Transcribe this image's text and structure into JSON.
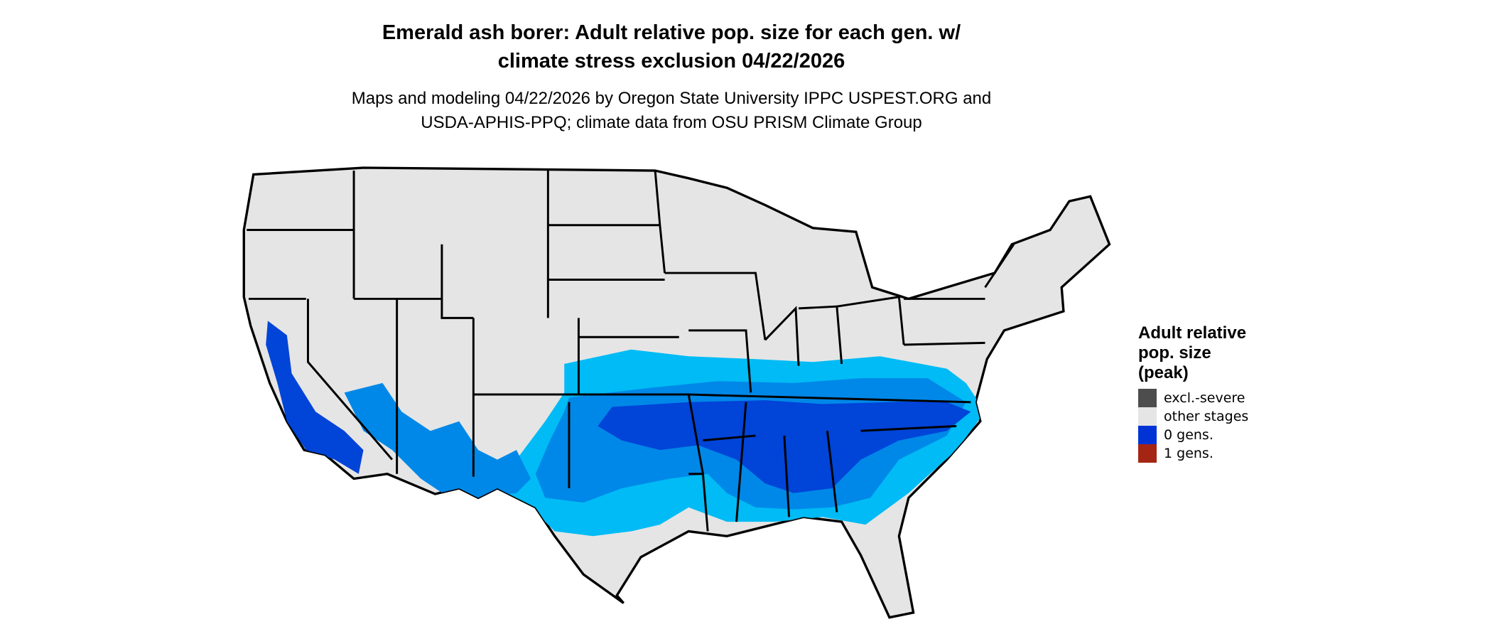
{
  "title": [
    "Emerald ash borer: Adult relative pop. size for each gen. w/",
    "climate stress exclusion 04/22/2026"
  ],
  "subtitle": [
    "Maps and modeling 04/22/2026 by Oregon State University IPPC USPEST.ORG and",
    "USDA-APHIS-PPQ; climate data from OSU PRISM Climate Group"
  ],
  "legend": {
    "title": [
      "Adult relative",
      "pop. size",
      "(peak)"
    ],
    "items": [
      {
        "label": "excl.-severe",
        "color": "#4d4d4d"
      },
      {
        "label": "other stages",
        "color": "#e5e5e5"
      },
      {
        "label": "0 gens.",
        "color": "#0033d6"
      },
      {
        "label": "1 gens.",
        "color": "#a52515"
      }
    ]
  },
  "map_colors": {
    "land": "#e5e5e5",
    "border": "#000000",
    "light_blue": "#00bbf5",
    "mid_blue": "#0088e8",
    "dark_blue": "#0044d8"
  }
}
